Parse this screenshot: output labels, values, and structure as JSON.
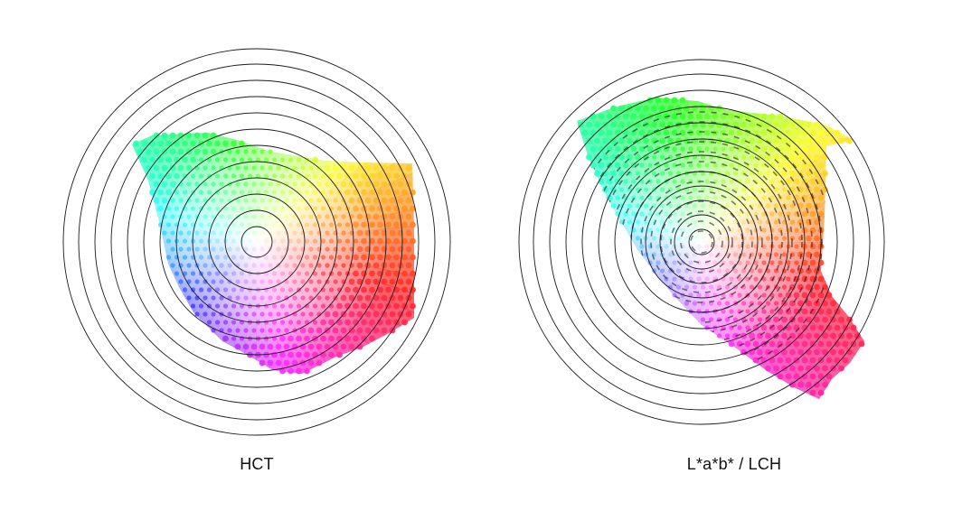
{
  "figure": {
    "panels": [
      {
        "id": "hct",
        "caption": "HCT"
      },
      {
        "id": "lab",
        "caption": "L*a*b* / LCH"
      }
    ]
  },
  "colors": {
    "background": "#ffffff",
    "ring_stroke": "#1a1a1a",
    "caption_text": "#111111"
  }
}
